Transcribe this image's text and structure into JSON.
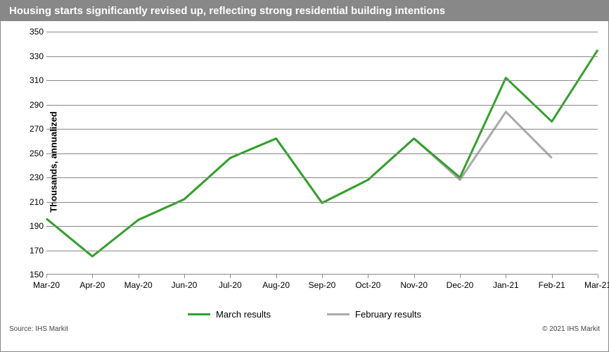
{
  "title": "Housing starts significantly revised up, reflecting strong residential building intentions",
  "y_axis_label": "Thousands, annualized",
  "footer_source": "Source: IHS Markit",
  "footer_copyright": "© 2021 IHS Markit",
  "chart": {
    "type": "line",
    "ylim": [
      150,
      350
    ],
    "ytick_step": 20,
    "background": "#ffffff",
    "grid_color": "#888888",
    "title_bg": "#888888",
    "title_color": "#ffffff",
    "categories": [
      "Mar-20",
      "Apr-20",
      "May-20",
      "Jun-20",
      "Jul-20",
      "Aug-20",
      "Sep-20",
      "Oct-20",
      "Nov-20",
      "Dec-20",
      "Jan-21",
      "Feb-21",
      "Mar-21"
    ],
    "series": [
      {
        "name": "March results",
        "color": "#33a02c",
        "line_width": 3,
        "values": [
          196,
          165,
          195,
          212,
          246,
          262,
          209,
          228,
          262,
          230,
          312,
          276,
          335
        ]
      },
      {
        "name": "February results",
        "color": "#a9a9a9",
        "line_width": 3,
        "values": [
          196,
          165,
          195,
          212,
          246,
          262,
          209,
          228,
          262,
          228,
          284,
          246,
          null
        ]
      }
    ]
  }
}
